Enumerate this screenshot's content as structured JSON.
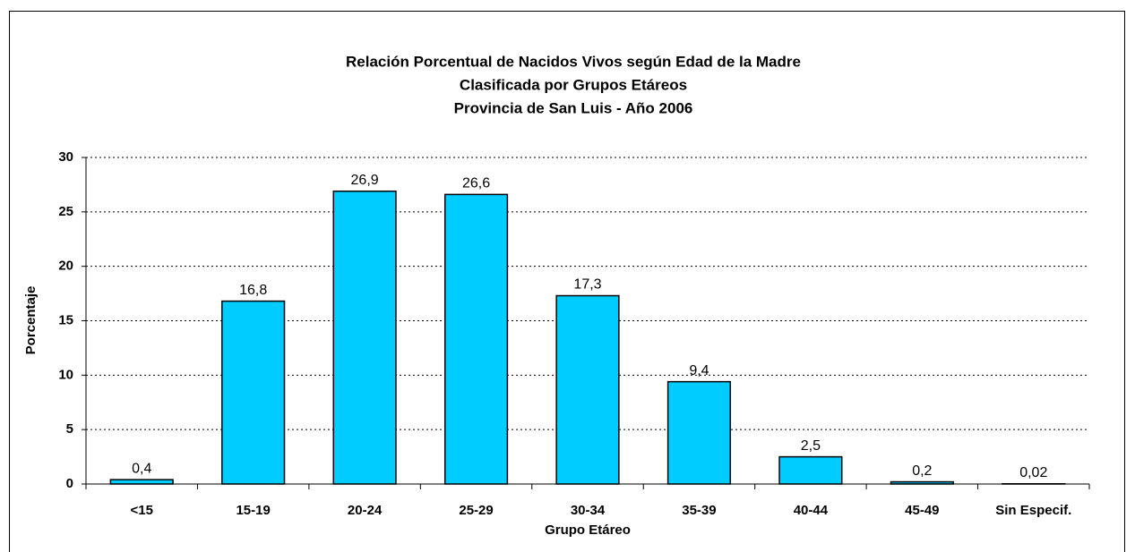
{
  "chart_data": {
    "type": "bar",
    "title": [
      "Relación Porcentual de Nacidos Vivos según Edad de la Madre",
      "Clasificada por Grupos Etáreos",
      "Provincia de San Luis - Año 2006"
    ],
    "x_label": "Grupo Etáreo",
    "y_label": "Porcentaje",
    "categories": [
      "<15",
      "15-19",
      "20-24",
      "25-29",
      "30-34",
      "35-39",
      "40-44",
      "45-49",
      "Sin Especif."
    ],
    "values": [
      0.4,
      16.8,
      26.9,
      26.6,
      17.3,
      9.4,
      2.5,
      0.2,
      0.02
    ],
    "value_labels": [
      "0,4",
      "16,8",
      "26,9",
      "26,6",
      "17,3",
      "9,4",
      "2,5",
      "0,2",
      "0,02"
    ],
    "color": "#00ccff",
    "ylim": [
      0,
      30
    ],
    "yticks": [
      0,
      5,
      10,
      15,
      20,
      25,
      30
    ],
    "grid": true
  }
}
